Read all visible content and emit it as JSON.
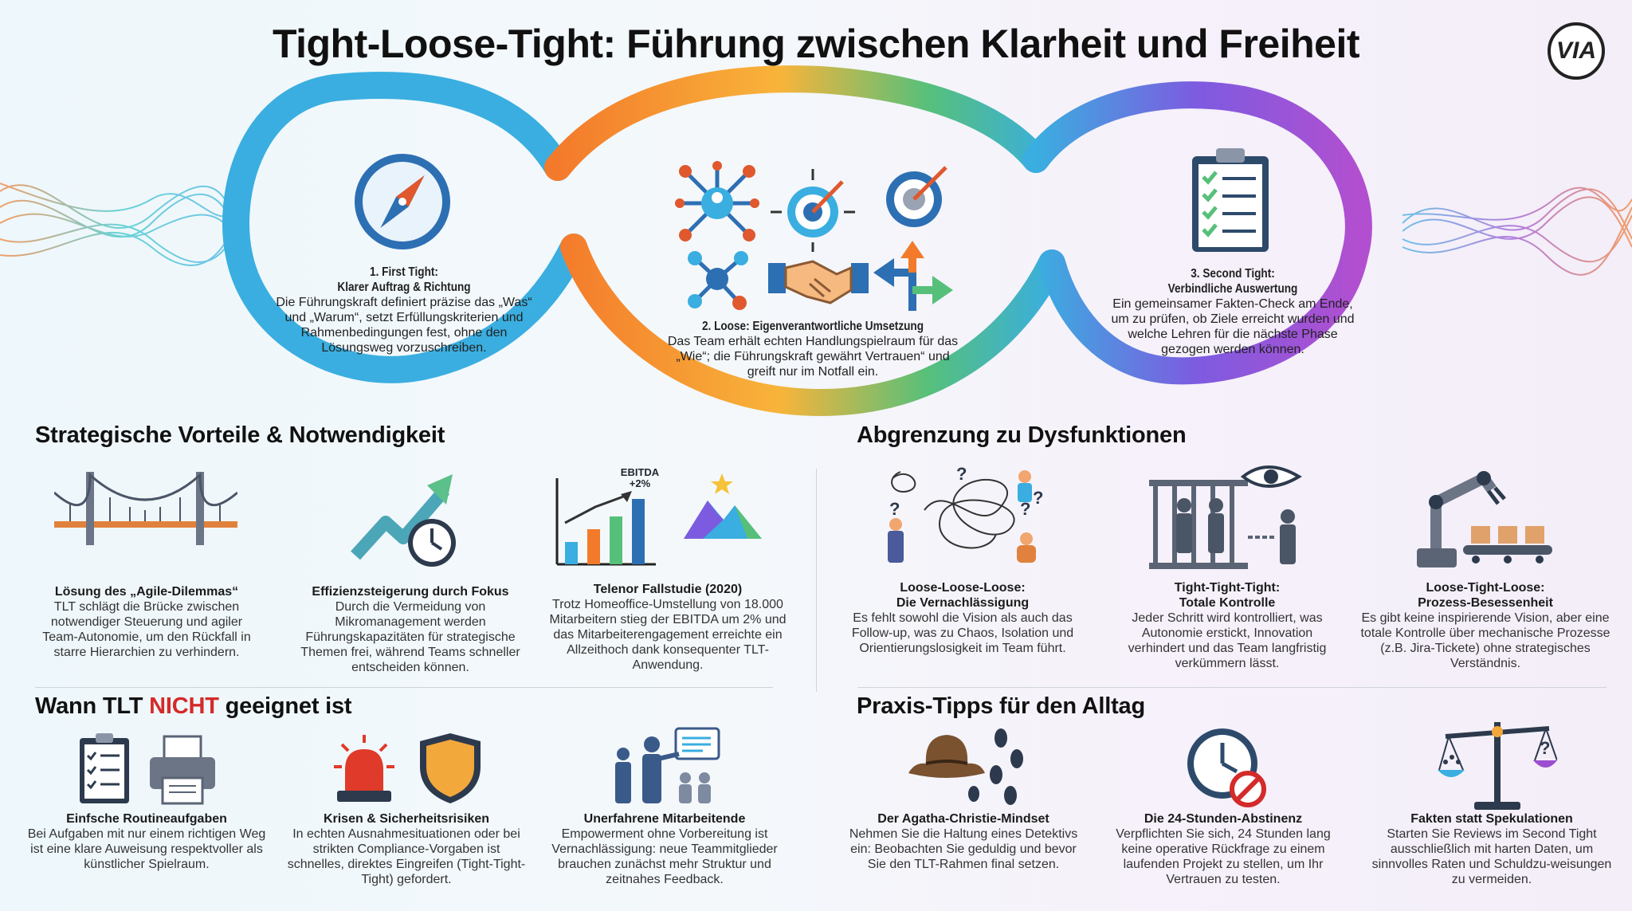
{
  "title": "Tight-Loose-Tight: Führung zwischen Klarheit und Freiheit",
  "logo_text": "VIA",
  "colors": {
    "blue": "#3aaee0",
    "orange": "#f47a2b",
    "green": "#56c07a",
    "purple": "#9b4fd0",
    "red_accent": "#d42a2a"
  },
  "phases": [
    {
      "title_line1": "1. First Tight:",
      "title_line2": "Klarer Auftrag & Richtung",
      "text": "Die Führungskraft definiert präzise das „Was“ und „Warum“, setzt Erfüllungskriterien und Rahmenbedingungen fest, ohne den Lösungsweg vorzuschreiben.",
      "icon": "compass-icon"
    },
    {
      "title_line1": "2. Loose: Eigenverantwortliche Umsetzung",
      "title_line2": "",
      "text": "Das Team erhält echten Handlungspielraum für das „Wie“; die Führungskraft gewährt Vertrauen“ und greift nur im Notfall ein.",
      "icon": "network-target-handshake-icons"
    },
    {
      "title_line1": "3. Second Tight:",
      "title_line2": "Verbindliche Auswertung",
      "text": "Ein gemeinsamer Fakten-Check am Ende, um zu prüfen, ob Ziele erreicht wurden und welche Lehren für die nächste Phase gezogen werden können.",
      "icon": "clipboard-check-icon"
    }
  ],
  "sections": {
    "benefits": {
      "heading": "Strategische Vorteile & Notwendigkeit",
      "cards": [
        {
          "title": "Lösung des „Agile-Dilemmas“",
          "text": "TLT schlägt die Brücke zwischen notwendiger Steuerung und agiler Team-Autonomie, um den Rückfall in starre Hierarchien zu verhindern.",
          "icon": "bridge-icon"
        },
        {
          "title": "Effizienzsteigerung durch Fokus",
          "text": "Durch die Vermeidung von Mikromanagement werden Führungskapazitäten für strategische Themen frei, während Teams schneller entscheiden können.",
          "icon": "growth-arrow-clock-icon"
        },
        {
          "title": "Telenor Fallstudie (2020)",
          "text": "Trotz Homeoffice-Umstellung von 18.000 Mitarbeitern stieg der EBITDA um 2% und das Mitarbeiterengagement erreichte ein Allzeithoch dank konsequenter TLT-Anwendung.",
          "icon": "bar-chart-mountain-icon",
          "chart_label_1": "EBITDA",
          "chart_label_2": "+2%"
        }
      ]
    },
    "dysfunctions": {
      "heading": "Abgrenzung zu Dysfunktionen",
      "cards": [
        {
          "title": "Loose-Loose-Loose:",
          "subtitle": "Die Vernachlässigung",
          "text": "Es fehlt sowohl die Vision als auch das Follow-up, was zu Chaos, Isolation und Orientierungslosigkeit im Team führt.",
          "icon": "chaos-question-icon"
        },
        {
          "title": "Tight-Tight-Tight:",
          "subtitle": "Totale Kontrolle",
          "text": "Jeder Schritt wird kontrolliert, was Autonomie erstickt, Innovation verhindert und das Team langfristig verkümmern lässt.",
          "icon": "cage-eye-icon"
        },
        {
          "title": "Loose-Tight-Loose:",
          "subtitle": "Prozess-Besessenheit",
          "text": "Es gibt keine inspirierende Vision, aber eine totale Kontrolle über mechanische Prozesse (z.B. Jira-Tickete) ohne strategisches Verständnis.",
          "icon": "robot-arm-conveyor-icon"
        }
      ]
    },
    "not_suitable": {
      "heading_prefix": "Wann TLT ",
      "heading_accent": "NICHT",
      "heading_suffix": " geeignet ist",
      "cards": [
        {
          "title": "Einfsche Routineaufgaben",
          "text": "Bei Aufgaben mit nur einem richtigen Weg ist eine klare Auweisung respektvoller als künstlicher Spielraum.",
          "icon": "clipboard-printer-icon"
        },
        {
          "title": "Krisen & Sicherheitsrisiken",
          "text": "In echten Ausnahmesituationen oder bei strikten Compliance-Vorgaben ist schnelles, direktes Eingreifen (Tight-Tight-Tight) gefordert.",
          "icon": "siren-shield-icon"
        },
        {
          "title": "Unerfahrene Mitarbeitende",
          "text": "Empowerment ohne Vorbereitung ist Vernachlässigung: neue Teammitglieder brauchen zunächst mehr Struktur und zeitnahes Feedback.",
          "icon": "mentor-team-icon"
        }
      ]
    },
    "tips": {
      "heading": "Praxis-Tipps für den Alltag",
      "cards": [
        {
          "title": "Der Agatha-Christie-Mindset",
          "text": "Nehmen Sie die Haltung eines Detektivs ein: Beobachten Sie geduldig und bevor Sie den TLT-Rahmen final setzen.",
          "icon": "detective-hat-footprints-icon"
        },
        {
          "title": "Die 24-Stunden-Abstinenz",
          "text": "Verpflichten Sie sich, 24 Stunden lang keine operative Rückfrage zu einem laufenden Projekt zu stellen, um Ihr Vertrauen zu testen.",
          "icon": "clock-prohibited-icon"
        },
        {
          "title": "Fakten statt Spekulationen",
          "text": "Starten Sie Reviews im Second Tight ausschließlich mit harten Daten, um sinnvolles Raten und Schuldzu-weisungen zu vermeiden.",
          "icon": "balance-scale-icon"
        }
      ]
    }
  }
}
